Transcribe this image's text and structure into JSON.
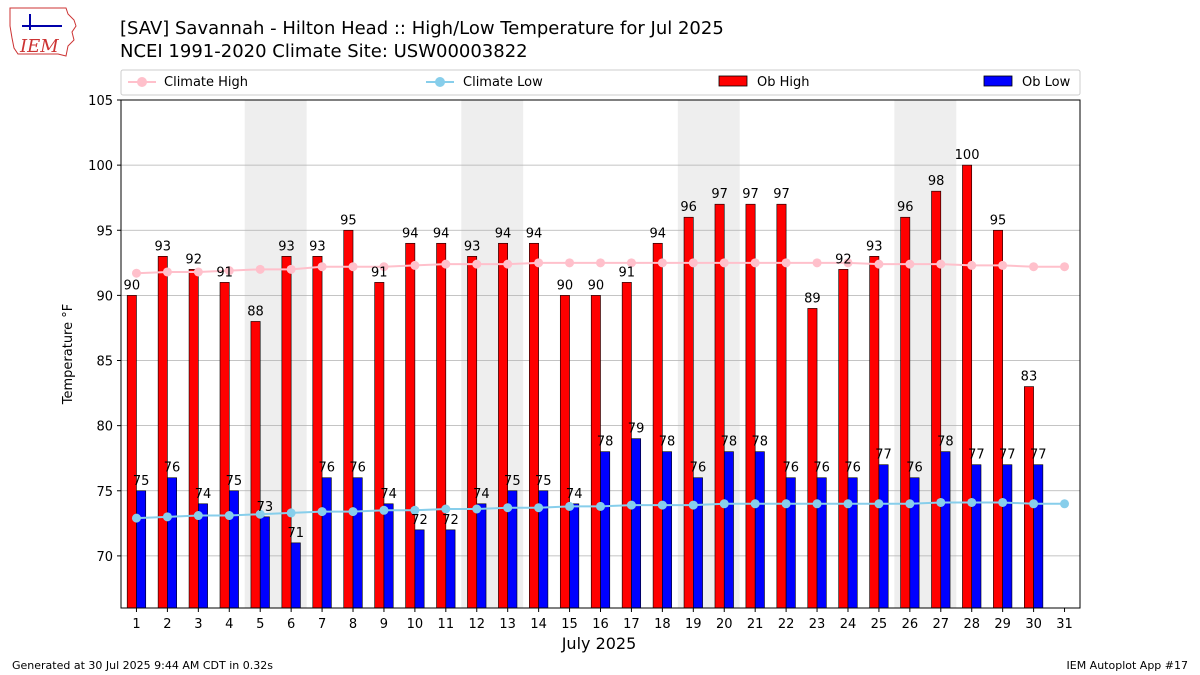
{
  "title": {
    "line1": "[SAV] Savannah - Hilton Head :: High/Low Temperature for Jul 2025",
    "line2": "NCEI 1991-2020 Climate Site: USW00003822"
  },
  "logo": {
    "text": "IEM"
  },
  "footer": {
    "left": "Generated at 30 Jul 2025 9:44 AM CDT in 0.32s",
    "right": "IEM Autoplot App #17"
  },
  "colors": {
    "ob_high": "#ff0000",
    "ob_low": "#0000ff",
    "climate_high": "#ffc0cb",
    "climate_low": "#87ceeb",
    "weekend_shade": "#eeeeee",
    "grid": "#b0b0b0"
  },
  "chart_data": {
    "type": "bar",
    "xlabel": "July 2025",
    "ylabel": "Temperature °F",
    "ylim": [
      66,
      105
    ],
    "yticks": [
      70,
      75,
      80,
      85,
      90,
      95,
      100,
      105
    ],
    "grid": true,
    "legend_position": "top",
    "x": [
      1,
      2,
      3,
      4,
      5,
      6,
      7,
      8,
      9,
      10,
      11,
      12,
      13,
      14,
      15,
      16,
      17,
      18,
      19,
      20,
      21,
      22,
      23,
      24,
      25,
      26,
      27,
      28,
      29,
      30,
      31
    ],
    "shaded_days": [
      5,
      6,
      12,
      13,
      19,
      20,
      26,
      27
    ],
    "series": [
      {
        "name": "Climate High",
        "kind": "line",
        "values": [
          91.7,
          91.8,
          91.8,
          91.9,
          92.0,
          92.0,
          92.2,
          92.2,
          92.2,
          92.3,
          92.4,
          92.4,
          92.4,
          92.5,
          92.5,
          92.5,
          92.5,
          92.5,
          92.5,
          92.5,
          92.5,
          92.5,
          92.5,
          92.5,
          92.4,
          92.4,
          92.4,
          92.3,
          92.3,
          92.2,
          92.2
        ]
      },
      {
        "name": "Climate Low",
        "kind": "line",
        "values": [
          72.9,
          73.0,
          73.1,
          73.1,
          73.2,
          73.3,
          73.4,
          73.4,
          73.5,
          73.5,
          73.6,
          73.6,
          73.7,
          73.7,
          73.8,
          73.8,
          73.9,
          73.9,
          73.9,
          74.0,
          74.0,
          74.0,
          74.0,
          74.0,
          74.0,
          74.0,
          74.1,
          74.1,
          74.1,
          74.0,
          74.0
        ]
      },
      {
        "name": "Ob High",
        "kind": "bar",
        "values": [
          90,
          93,
          92,
          91,
          88,
          93,
          93,
          95,
          91,
          94,
          94,
          93,
          94,
          94,
          90,
          90,
          91,
          94,
          96,
          97,
          97,
          97,
          89,
          92,
          93,
          96,
          98,
          100,
          95,
          83,
          null
        ]
      },
      {
        "name": "Ob Low",
        "kind": "bar",
        "values": [
          75,
          76,
          74,
          75,
          73,
          71,
          76,
          76,
          74,
          72,
          72,
          74,
          75,
          75,
          74,
          78,
          79,
          78,
          76,
          78,
          78,
          76,
          76,
          76,
          77,
          76,
          78,
          77,
          77,
          77,
          null
        ]
      }
    ]
  }
}
